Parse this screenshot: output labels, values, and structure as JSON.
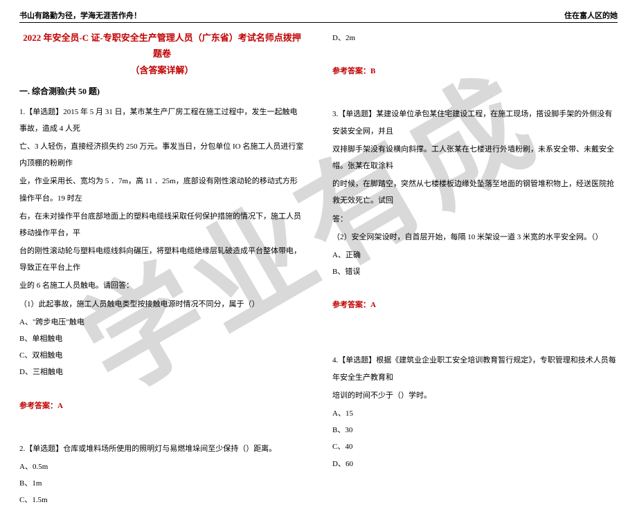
{
  "header": {
    "left": "书山有路勤为径，学海无涯苦作舟！",
    "right": "住在富人区的她"
  },
  "watermark": "学业有成",
  "title": {
    "line1": "2022 年安全员-C 证-专职安全生产管理人员（广东省）考试名师点拨押题卷",
    "line2": "（含答案详解）"
  },
  "section": "一. 综合测验(共 50 题)",
  "colors": {
    "accent": "#c00000",
    "watermark": "#d9d9d9",
    "text": "#000000"
  },
  "left": {
    "q1": {
      "stem1": "1.【单选题】2015 年 5 月 31 日，某市某生产厂房工程在施工过程中，发生一起触电事故，造成 4 人死",
      "stem2": "亡、3 人轻伤，直接经济损失约 250 万元。事发当日，分包单位 IO 名施工人员进行室内顶棚的粉刷作",
      "stem3": "业，作业采用长、宽均为 5 ．7m，高 11 ．25m，底部设有刚性滚动轮的移动式方形操作平台。19 时左",
      "stem4": "右，在未对操作平台底部地面上的塑料电缆线采取任何保护措施的情况下，施工人员移动操作平台，平",
      "stem5": "台的刚性滚动轮与塑料电缆线斜向碾压，将塑料电缆绝缘层轧破造成平台整体带电，导致正在平台上作",
      "stem6": "业的 6 名施工人员触电。请回答：",
      "sub": "（1）此起事故，施工人员触电类型按接触电源时情况不同分，属于（）",
      "opts": {
        "A": "A、\"跨步电压\"触电",
        "B": "B、单相触电",
        "C": "C、双相触电",
        "D": "D、三相触电"
      },
      "ans": "参考答案：A"
    },
    "q2": {
      "stem": "2.【单选题】仓库或堆料场所使用的照明灯与易燃堆垛间至少保持（）距离。",
      "opts": {
        "A": "A、0.5m",
        "B": "B、1m",
        "C": "C、1.5m"
      }
    }
  },
  "right": {
    "q2d": "D、2m",
    "q2ans": "参考答案：B",
    "q3": {
      "stem1": "3.【单选题】某建设单位承包某住宅建设工程，在施工现场，搭设脚手架的外侧没有安装安全网，并且",
      "stem2": "双排脚手架没有设横向斜撑。工人张某在七楼进行外墙粉刷，未系安全带、未戴安全帽。张某在取涂料",
      "stem3": "的时候，在脚踏空，突然从七楼楼板边缘处坠落至地面的钢管堆积物上，经送医院抢救无效死亡。试回",
      "stem4": "答：",
      "sub": "（2）安全网架设时，自首层开始，每隔 10 米架设一道 3 米宽的水平安全网。（）",
      "opts": {
        "A": "A、正确",
        "B": "B、错误"
      },
      "ans": "参考答案：A"
    },
    "q4": {
      "stem1": "4.【单选题】根据《建筑业企业职工安全培训教育暂行规定》，专职管理和技术人员每年安全生产教育和",
      "stem2": "培训的时间不少于（）学时。",
      "opts": {
        "A": "A、15",
        "B": "B、30",
        "C": "C、40",
        "D": "D、60"
      }
    }
  }
}
